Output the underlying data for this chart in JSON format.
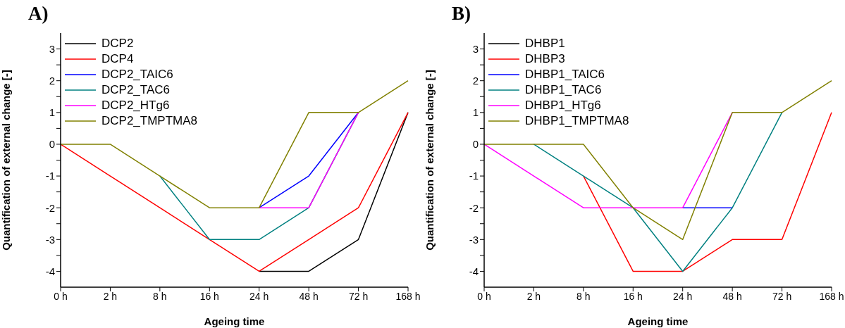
{
  "chart_data": [
    {
      "type": "line",
      "title": "A)",
      "xlabel": "Ageing time",
      "ylabel": "Quantification of external change [-]",
      "categories": [
        "0 h",
        "2 h",
        "8 h",
        "16 h",
        "24 h",
        "48 h",
        "72 h",
        "168 h"
      ],
      "series": [
        {
          "name": "DCP2",
          "color": "#000000",
          "values": [
            null,
            null,
            null,
            null,
            -4,
            -4,
            -3,
            1
          ]
        },
        {
          "name": "DCP4",
          "color": "#ff0000",
          "values": [
            0,
            -1,
            -2,
            -3,
            -4,
            -3,
            -2,
            1
          ]
        },
        {
          "name": "DCP2_TAIC6",
          "color": "#0000ff",
          "values": [
            null,
            null,
            null,
            null,
            -2,
            -1,
            1,
            null
          ]
        },
        {
          "name": "DCP2_TAC6",
          "color": "#008080",
          "values": [
            null,
            null,
            -1,
            -3,
            -3,
            -2,
            1,
            null
          ]
        },
        {
          "name": "DCP2_HTg6",
          "color": "#ff00ff",
          "values": [
            null,
            null,
            null,
            null,
            -2,
            -2,
            1,
            null
          ]
        },
        {
          "name": "DCP2_TMPTMA8",
          "color": "#808000",
          "values": [
            0,
            0,
            -1,
            -2,
            -2,
            1,
            1,
            2
          ]
        }
      ],
      "ylim": [
        -4.5,
        3.5
      ],
      "yticks": [
        -4,
        {
          "value": -3.5,
          "label": null
        },
        -3,
        {
          "value": -2.5,
          "label": null
        },
        -2,
        {
          "value": -1.5,
          "label": null
        },
        -1,
        {
          "value": -0.5,
          "label": null
        },
        0,
        {
          "value": 0.5,
          "label": null
        },
        1,
        {
          "value": 1.5,
          "label": null
        },
        2,
        {
          "value": 2.5,
          "label": null
        },
        3
      ],
      "grid": false,
      "legend": "top left",
      "marker": "none",
      "line_style": "solid"
    },
    {
      "type": "line",
      "title": "B)",
      "xlabel": "Ageing time",
      "ylabel": "Quantification of external change [-]",
      "categories": [
        "0 h",
        "2 h",
        "8 h",
        "16 h",
        "24 h",
        "48 h",
        "72 h",
        "168 h"
      ],
      "series": [
        {
          "name": "DHBP1",
          "color": "#000000",
          "values": [
            null,
            null,
            null,
            null,
            null,
            null,
            null,
            null
          ]
        },
        {
          "name": "DHBP3",
          "color": "#ff0000",
          "values": [
            null,
            null,
            -1,
            -4,
            -4,
            -3,
            -3,
            1
          ]
        },
        {
          "name": "DHBP1_TAIC6",
          "color": "#0000ff",
          "values": [
            null,
            null,
            null,
            null,
            -2,
            -2,
            null,
            null
          ]
        },
        {
          "name": "DHBP1_TAC6",
          "color": "#008080",
          "values": [
            null,
            0,
            -1,
            -2,
            -4,
            -2,
            1,
            null
          ]
        },
        {
          "name": "DHBP1_HTg6",
          "color": "#ff00ff",
          "values": [
            0,
            -1,
            -2,
            -2,
            -2,
            1,
            null,
            null
          ]
        },
        {
          "name": "DHBP1_TMPTMA8",
          "color": "#808000",
          "values": [
            0,
            0,
            0,
            -2,
            -3,
            1,
            1,
            2
          ]
        }
      ],
      "ylim": [
        -4.5,
        3.5
      ],
      "yticks": [
        -4,
        {
          "value": -3.5,
          "label": null
        },
        -3,
        {
          "value": -2.5,
          "label": null
        },
        -2,
        {
          "value": -1.5,
          "label": null
        },
        -1,
        {
          "value": -0.5,
          "label": null
        },
        0,
        {
          "value": 0.5,
          "label": null
        },
        1,
        {
          "value": 1.5,
          "label": null
        },
        2,
        {
          "value": 2.5,
          "label": null
        },
        3
      ],
      "grid": false,
      "legend": "top left",
      "marker": "none",
      "line_style": "solid"
    }
  ]
}
